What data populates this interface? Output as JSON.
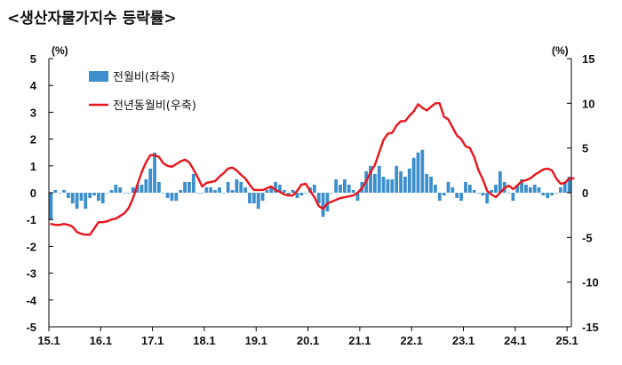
{
  "title": "<생산자물가지수 등락률>",
  "chart_data": {
    "type": "bar+line",
    "left_unit": "(%)",
    "right_unit": "(%)",
    "left_ylim": [
      -5,
      5
    ],
    "right_ylim": [
      -15,
      15
    ],
    "left_ticks": [
      "5",
      "4",
      "3",
      "2",
      "1",
      "0",
      "-1",
      "-2",
      "-3",
      "-4",
      "-5"
    ],
    "right_ticks": [
      "15",
      "10",
      "5",
      "0",
      "-5",
      "-10",
      "-15"
    ],
    "x_tick_labels": [
      "15.1",
      "16.1",
      "17.1",
      "18.1",
      "19.1",
      "20.1",
      "21.1",
      "22.1",
      "23.1",
      "24.1",
      "25.1"
    ],
    "legend": {
      "bar": "전월비(좌축)",
      "line": "전년동월비(우축)"
    },
    "colors": {
      "bar": "#3d8fcc",
      "line": "#e8141c"
    },
    "mom_monthly": [
      -1.0,
      0.1,
      0.0,
      0.1,
      -0.2,
      -0.4,
      -0.6,
      -0.3,
      -0.6,
      -0.2,
      -0.1,
      -0.3,
      -0.4,
      0.0,
      0.1,
      0.3,
      0.2,
      0.0,
      0.0,
      0.2,
      0.3,
      0.3,
      0.5,
      0.9,
      1.5,
      0.4,
      0.0,
      -0.2,
      -0.3,
      -0.3,
      0.1,
      0.4,
      0.4,
      0.7,
      0.0,
      0.0,
      0.2,
      0.2,
      0.1,
      0.2,
      0.0,
      0.4,
      0.1,
      0.5,
      0.4,
      0.2,
      -0.4,
      -0.4,
      -0.6,
      -0.3,
      0.1,
      0.2,
      0.4,
      0.3,
      0.1,
      -0.1,
      0.1,
      -0.2,
      -0.1,
      0.0,
      0.2,
      0.3,
      -0.4,
      -0.9,
      -0.7,
      0.0,
      0.5,
      0.3,
      0.5,
      0.3,
      0.1,
      -0.3,
      0.4,
      0.8,
      1.0,
      0.7,
      1.0,
      0.6,
      0.5,
      0.5,
      1.0,
      0.8,
      0.6,
      0.9,
      1.3,
      1.5,
      1.6,
      0.7,
      0.6,
      0.3,
      -0.3,
      -0.1,
      0.4,
      0.2,
      -0.2,
      -0.3,
      0.4,
      0.3,
      0.1,
      0.0,
      -0.1,
      -0.4,
      0.1,
      0.3,
      0.8,
      0.4,
      0.0,
      -0.3,
      0.3,
      0.5,
      0.3,
      0.2,
      0.3,
      0.2,
      -0.1,
      -0.2,
      -0.1,
      0.0,
      0.2,
      0.4,
      0.6
    ],
    "yoy_monthly": [
      -3.5,
      -3.6,
      -3.6,
      -3.5,
      -3.6,
      -3.8,
      -4.4,
      -4.6,
      -4.7,
      -4.7,
      -4.0,
      -3.3,
      -3.3,
      -3.2,
      -3.0,
      -2.9,
      -2.6,
      -2.3,
      -1.7,
      -0.6,
      0.9,
      2.3,
      3.4,
      4.2,
      4.2,
      4.0,
      3.3,
      3.0,
      2.9,
      3.2,
      3.5,
      3.7,
      3.4,
      2.6,
      1.7,
      0.7,
      1.1,
      1.2,
      1.3,
      1.8,
      2.2,
      2.7,
      2.8,
      2.5,
      2.0,
      1.6,
      0.9,
      0.3,
      0.3,
      0.3,
      0.5,
      0.7,
      0.3,
      0.1,
      -0.2,
      -0.3,
      -0.3,
      0.2,
      0.9,
      1.0,
      0.2,
      -0.5,
      -1.5,
      -1.8,
      -1.2,
      -1.0,
      -0.8,
      -0.6,
      -0.5,
      -0.4,
      -0.3,
      0.0,
      0.5,
      1.3,
      2.3,
      3.1,
      4.5,
      5.9,
      6.6,
      6.7,
      7.5,
      8.0,
      8.0,
      8.6,
      9.1,
      9.9,
      9.5,
      9.2,
      9.6,
      10.0,
      10.0,
      8.5,
      8.2,
      7.3,
      6.4,
      6.0,
      5.2,
      5.0,
      4.0,
      2.5,
      1.5,
      0.2,
      -0.2,
      -0.5,
      0.0,
      0.5,
      0.8,
      0.4,
      0.8,
      1.3,
      1.4,
      1.6,
      2.0,
      2.3,
      2.6,
      2.7,
      2.5,
      1.6,
      1.0,
      1.1,
      1.6,
      1.6
    ]
  }
}
